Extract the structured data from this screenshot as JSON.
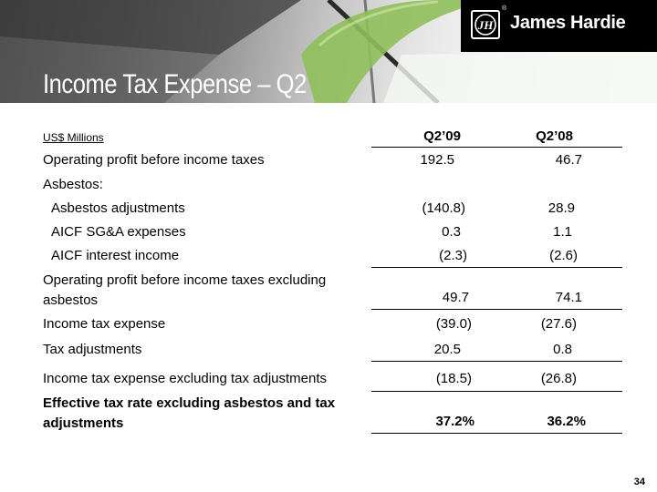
{
  "brand": {
    "name": "James Hardie",
    "mark": "JH",
    "registered": "®"
  },
  "title": "Income Tax Expense – Q2",
  "table": {
    "units": "US$ Millions",
    "columns": [
      "Q2’09",
      "Q2’08"
    ],
    "rows": [
      {
        "label": "Operating profit before income taxes",
        "q209": "192.5",
        "q208": "46.7"
      },
      {
        "label": "Asbestos:",
        "q209": "",
        "q208": ""
      },
      {
        "label": "Asbestos adjustments",
        "q209": "(140.8)",
        "q208": "28.9"
      },
      {
        "label": "AICF SG&A expenses",
        "q209": "0.3",
        "q208": "1.1"
      },
      {
        "label": "AICF interest income",
        "q209": "(2.3)",
        "q208": "(2.6)"
      },
      {
        "label": "Operating profit before income taxes excluding asbestos",
        "q209": "49.7",
        "q208": "74.1"
      },
      {
        "label": "Income tax expense",
        "q209": "(39.0)",
        "q208": "(27.6)"
      },
      {
        "label": "Tax adjustments",
        "q209": "20.5",
        "q208": "0.8"
      },
      {
        "label": "Income tax expense excluding tax adjustments",
        "q209": "(18.5)",
        "q208": "(26.8)"
      },
      {
        "label": "Effective tax rate excluding asbestos and tax adjustments",
        "q209": "37.2%",
        "q208": "36.2%"
      }
    ]
  },
  "page_number": "34",
  "colors": {
    "banner_dark": "#4a4a4a",
    "accent_green": "#8fbf5a",
    "logo_bg": "#000000",
    "title": "#ffffff"
  }
}
